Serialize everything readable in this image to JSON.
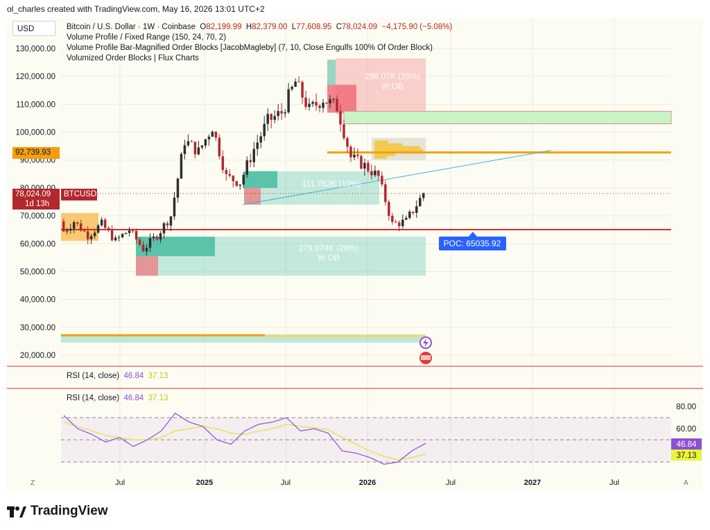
{
  "caption": "ol_charles created with TradingView.com, May 16, 2026 13:01 UTC+2",
  "currency_button": "USD",
  "legend": {
    "symbol": "Bitcoin / U.S. Dollar · 1W · Coinbase",
    "o_label": "O",
    "o_value": "82,199.99",
    "h_label": "H",
    "h_value": "82,379.00",
    "l_label": "L",
    "l_value": "77,608.95",
    "c_label": "C",
    "c_value": "78,024.09",
    "change": "−4,175.90 (−5.08%)",
    "indicator_1": "Volume Profile / Fixed Range (150, 24, 70, 2)",
    "indicator_2": "Volume Profile Bar-Magnified Order Blocks [JacobMagleby] (7, 10, Close Engulfs 100% Of Order Block)",
    "indicator_3": "Volumized Order Blocks | Flux Charts"
  },
  "price_tags": {
    "orange_level": "92,739.93",
    "current_price": "78,024.09",
    "current_countdown": "1d 13h",
    "ticker": "BTCUSD"
  },
  "annotations": {
    "ob_upper": "298.07K (20%)",
    "ob_upper_sub": "W OB",
    "ob_middle": "111.782K (10%)",
    "ob_lower": "279.974K (26%)",
    "ob_lower_sub": "W OB",
    "poc": "POC: 65035.92"
  },
  "rsi": {
    "pane_label": "RSI (14, close)",
    "rsi_value": "46.84",
    "ma_value": "37.13",
    "levels": [
      "80.00",
      "60.00"
    ]
  },
  "axes": {
    "y_ticks": [
      "130,000.00",
      "120,000.00",
      "110,000.00",
      "100,000.00",
      "90,000.00",
      "80,000.00",
      "70,000.00",
      "60,000.00",
      "50,000.00",
      "40,000.00",
      "30,000.00",
      "20,000.00"
    ],
    "x_ticks": [
      "Jul",
      "2025",
      "Jul",
      "2026",
      "Jul",
      "2027",
      "Jul"
    ],
    "x_bold": [
      false,
      true,
      false,
      true,
      false,
      true,
      false
    ],
    "zoom_left": "Z",
    "zoom_right": "A"
  },
  "footer": {
    "brand": "TradingView"
  },
  "colors": {
    "up": "#2e2e2e",
    "down": "#b2282d",
    "poc_line": "#d32f2f",
    "orange": "#f59e0b",
    "teal": "#7fd3c2",
    "pink": "#f6a9a9",
    "green_zone": "#c9f5c6",
    "rsi": "#8c4fd6",
    "rsi_ma": "#e3e35a"
  },
  "chart_data": {
    "type": "candlestick",
    "interval": "1W",
    "ylim": [
      17000,
      135000
    ],
    "x": [
      "2024-03",
      "2024-04",
      "2024-05",
      "2024-06",
      "2024-07",
      "2024-08",
      "2024-09",
      "2024-10",
      "2024-11",
      "2024-12",
      "2025-01",
      "2025-02",
      "2025-03",
      "2025-04",
      "2025-05",
      "2025-06",
      "2025-07",
      "2025-08",
      "2025-09",
      "2025-10",
      "2025-11",
      "2025-12",
      "2026-01",
      "2026-02",
      "2026-03",
      "2026-04",
      "2026-05"
    ],
    "close": [
      68000,
      63000,
      67000,
      61000,
      65000,
      58000,
      63000,
      70000,
      97000,
      93000,
      102000,
      84000,
      82000,
      94000,
      104000,
      107000,
      118000,
      108000,
      112000,
      109000,
      91000,
      88000,
      84000,
      67000,
      68000,
      76000,
      78024
    ],
    "levels": {
      "poc": 65035.92,
      "orange": 92739.93,
      "current": 78024.09
    },
    "rsi_series": [
      72,
      60,
      55,
      48,
      52,
      44,
      50,
      58,
      74,
      66,
      62,
      50,
      46,
      58,
      64,
      66,
      70,
      58,
      60,
      56,
      40,
      38,
      34,
      28,
      30,
      40,
      46.84
    ],
    "rsi_ma_series": [
      66,
      62,
      58,
      54,
      52,
      50,
      50,
      52,
      58,
      60,
      62,
      60,
      56,
      55,
      58,
      60,
      64,
      62,
      61,
      59,
      52,
      46,
      40,
      35,
      32,
      34,
      37.13
    ],
    "rsi_ylim": [
      30,
      90
    ]
  }
}
